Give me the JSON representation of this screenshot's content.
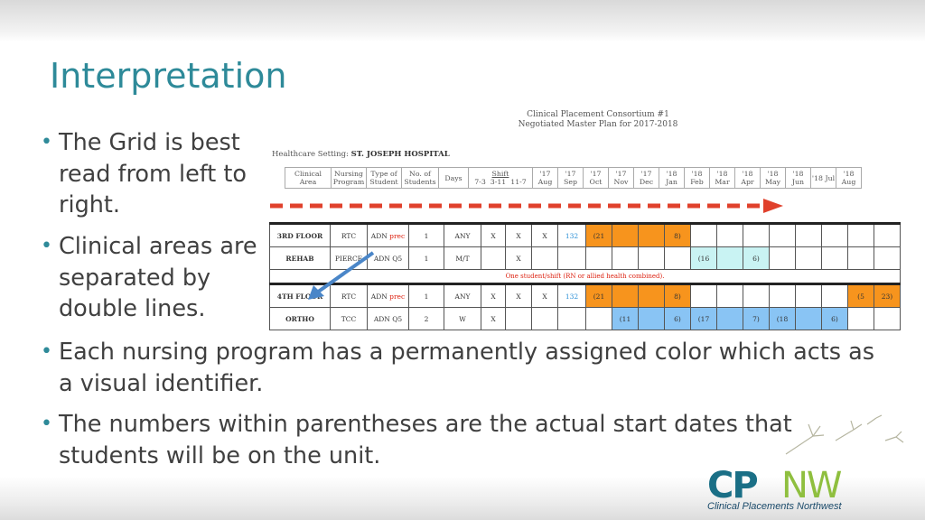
{
  "slide": {
    "title": "Interpretation",
    "bullets": [
      "The Grid is best read from left to right.",
      "Clinical areas are separated by double lines.",
      "Each nursing program has a permanently assigned color which acts as a visual identifier.",
      "The numbers within parentheses are the actual start dates that students will be on the unit."
    ]
  },
  "sheet": {
    "header_line1": "Clinical Placement Consortium #1",
    "header_line2": "Negotiated Master Plan for 2017-2018",
    "setting_label": "Healthcare Setting:",
    "setting_value": "ST. JOSEPH HOSPITAL",
    "columns": [
      "Clinical Area",
      "Nursing Program",
      "Type of Student",
      "No. of Students",
      "Days",
      "Shift",
      "7-3",
      "3-11",
      "11-7",
      "'17 Aug",
      "'17 Sep",
      "'17 Oct",
      "'17 Nov",
      "'17 Dec",
      "'18 Jan",
      "'18 Feb",
      "'18 Mar",
      "'18 Apr",
      "'18 May",
      "'18 Jun",
      "'18 Jul",
      "'18 Aug"
    ],
    "area1": "3RD FLOOR",
    "area1b": "REHAB",
    "area2": "4TH FLOOR",
    "area2b": "ORTHO",
    "note": "One student/shift (RN or allied health combined).",
    "rows": [
      {
        "program": "RTC",
        "type": "ADN",
        "type_suffix": "prec",
        "no": "1",
        "days": "ANY",
        "s1": "X",
        "s2": "X",
        "s3": "X",
        "aug": "132",
        "sep": "(21",
        "dec": "8)"
      },
      {
        "program": "PIERCE",
        "type": "ADN Q5",
        "no": "1",
        "days": "M/T",
        "s2": "X",
        "jan": "(16",
        "mar": "6)"
      },
      {
        "program": "RTC",
        "type": "ADN",
        "type_suffix": "prec",
        "no": "1",
        "days": "ANY",
        "s1": "X",
        "s2": "X",
        "s3": "X",
        "aug": "132",
        "sep": "(21",
        "dec": "8)",
        "jul": "(5",
        "aug2": "23)"
      },
      {
        "program": "TCC",
        "type": "ADN Q5",
        "no": "2",
        "days": "W",
        "s1": "X",
        "oct": "(11",
        "dec": "6)",
        "jan": "(17",
        "mar": "7)",
        "apr": "(18",
        "jun": "6)"
      }
    ]
  },
  "logo": {
    "left_text": "CP",
    "right_text": "NW",
    "tagline": "Clinical Placements Northwest",
    "colors": {
      "cp": "#1a6f86",
      "nw": "#8fbf3f"
    }
  },
  "colors": {
    "title": "#2e8a99",
    "arrow_red": "#e0412c",
    "arrow_blue": "#4a86c8",
    "orange": "#f7941d",
    "blue": "#89c4f4"
  }
}
